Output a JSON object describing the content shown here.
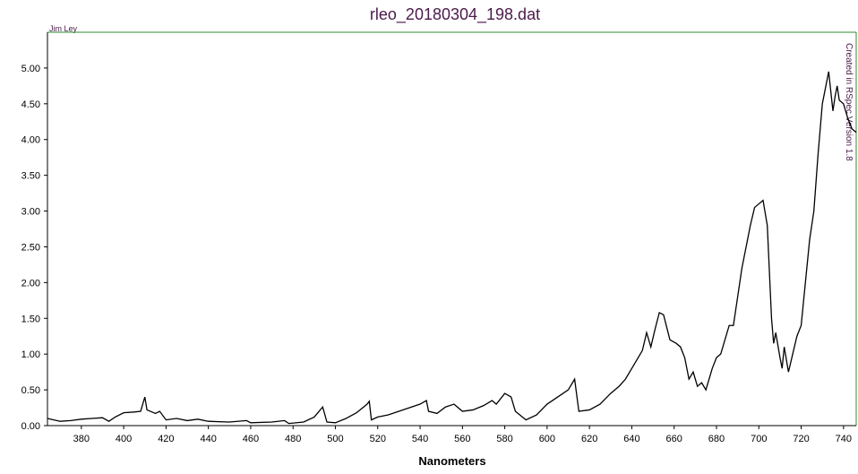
{
  "chart_data": {
    "type": "line",
    "title": "rleo_20180304_198.dat",
    "xlabel": "Nanometers",
    "annotations": [
      "Jim Ley",
      "Created in RSpec Version 1.8"
    ],
    "xlim": [
      364,
      746
    ],
    "ylim": [
      0,
      5.5
    ],
    "xticks": [
      380,
      400,
      420,
      440,
      460,
      480,
      500,
      520,
      540,
      560,
      580,
      600,
      620,
      640,
      660,
      680,
      700,
      720,
      740
    ],
    "yticks": [
      {
        "value": 0,
        "label": "0.00"
      },
      {
        "value": 0.5,
        "label": "0.50"
      },
      {
        "value": 1,
        "label": "1.00"
      },
      {
        "value": 1.5,
        "label": "1.50"
      },
      {
        "value": 2,
        "label": "2.00"
      },
      {
        "value": 2.5,
        "label": "2.50"
      },
      {
        "value": 3,
        "label": "3.00"
      },
      {
        "value": 3.5,
        "label": "3.50"
      },
      {
        "value": 4,
        "label": "4.00"
      },
      {
        "value": 4.5,
        "label": "4.50"
      },
      {
        "value": 5,
        "label": "5.00"
      }
    ],
    "color": "#000000",
    "x": [
      364,
      370,
      375,
      380,
      385,
      390,
      393,
      396,
      400,
      405,
      408,
      410,
      411,
      415,
      417,
      420,
      425,
      430,
      435,
      440,
      450,
      458,
      460,
      470,
      476,
      478,
      485,
      490,
      494,
      496,
      500,
      505,
      510,
      515,
      516,
      517,
      520,
      525,
      530,
      535,
      540,
      543,
      544,
      548,
      552,
      556,
      560,
      565,
      570,
      574,
      576,
      580,
      583,
      585,
      590,
      595,
      600,
      605,
      610,
      613,
      615,
      620,
      625,
      630,
      634,
      637,
      640,
      643,
      645,
      647,
      649,
      651,
      653,
      655,
      658,
      661,
      663,
      665,
      667,
      669,
      671,
      673,
      675,
      678,
      680,
      682,
      684,
      686,
      688,
      690,
      692,
      694,
      696,
      698,
      700,
      702,
      704,
      706,
      707,
      708,
      710,
      711,
      712,
      714,
      716,
      718,
      720,
      722,
      724,
      726,
      728,
      730,
      732,
      733,
      735,
      736,
      737,
      738,
      740,
      742,
      744,
      746
    ],
    "values": [
      0.1,
      0.06,
      0.07,
      0.09,
      0.1,
      0.11,
      0.06,
      0.12,
      0.18,
      0.19,
      0.2,
      0.4,
      0.22,
      0.17,
      0.2,
      0.08,
      0.1,
      0.07,
      0.09,
      0.06,
      0.05,
      0.07,
      0.04,
      0.05,
      0.07,
      0.03,
      0.05,
      0.12,
      0.26,
      0.05,
      0.04,
      0.1,
      0.18,
      0.3,
      0.34,
      0.08,
      0.12,
      0.15,
      0.2,
      0.25,
      0.3,
      0.35,
      0.2,
      0.17,
      0.26,
      0.3,
      0.2,
      0.22,
      0.28,
      0.35,
      0.3,
      0.45,
      0.4,
      0.2,
      0.08,
      0.15,
      0.3,
      0.4,
      0.5,
      0.65,
      0.2,
      0.22,
      0.3,
      0.45,
      0.55,
      0.65,
      0.8,
      0.95,
      1.05,
      1.3,
      1.1,
      1.35,
      1.58,
      1.55,
      1.2,
      1.15,
      1.1,
      0.95,
      0.65,
      0.75,
      0.55,
      0.6,
      0.5,
      0.8,
      0.95,
      1.0,
      1.2,
      1.4,
      1.4,
      1.8,
      2.2,
      2.5,
      2.8,
      3.05,
      3.1,
      3.15,
      2.8,
      1.5,
      1.15,
      1.3,
      0.95,
      0.8,
      1.1,
      0.75,
      1.0,
      1.25,
      1.4,
      2.0,
      2.6,
      3.0,
      3.8,
      4.5,
      4.8,
      4.95,
      4.4,
      4.6,
      4.75,
      4.55,
      4.5,
      4.3,
      4.15,
      4.1
    ]
  }
}
